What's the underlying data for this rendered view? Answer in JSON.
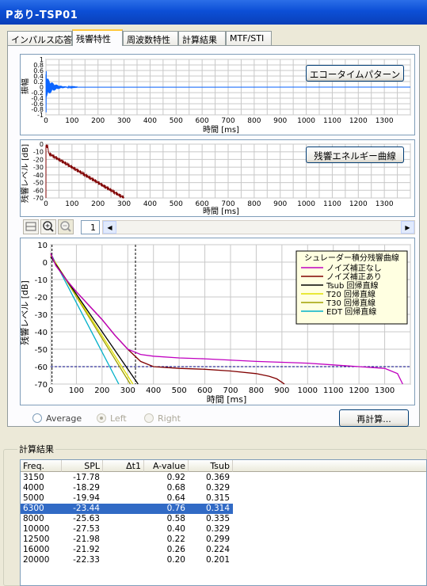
{
  "window": {
    "title": "Pあり-TSP01"
  },
  "tabs": [
    {
      "label": "インパルス応答"
    },
    {
      "label": "残響特性"
    },
    {
      "label": "周波数特性"
    },
    {
      "label": "計算結果"
    },
    {
      "label": "MTF/STI"
    }
  ],
  "echo_plot": {
    "button": "エコータイムパターン",
    "xlabel": "時間 [ms]",
    "ylabel": "振幅",
    "xticks": [
      "0",
      "100",
      "200",
      "300",
      "400",
      "500",
      "600",
      "700",
      "800",
      "900",
      "1000",
      "1100",
      "1200",
      "1300"
    ],
    "yticks": [
      "1",
      "0.8",
      "0.6",
      "0.4",
      "0.2",
      "0",
      "-0.2",
      "-0.4",
      "-0.6",
      "-0.8",
      "-1"
    ]
  },
  "energy_plot": {
    "button": "残響エネルギー曲線",
    "xlabel": "時間 [ms]",
    "ylabel": "残響レベル [dB]",
    "xticks": [
      "0",
      "100",
      "200",
      "300",
      "400",
      "500",
      "600",
      "700",
      "800",
      "900",
      "1000",
      "1100",
      "1200",
      "1300"
    ],
    "yticks": [
      "0",
      "-10",
      "-20",
      "-30",
      "-40",
      "-50",
      "-60",
      "-70"
    ]
  },
  "toolbar": {
    "page_value": "1"
  },
  "chart_data": {
    "type": "line",
    "xlabel": "時間 [ms]",
    "ylabel": "残響レベル [dB]",
    "xlim": [
      0,
      1400
    ],
    "ylim": [
      -70,
      10
    ],
    "xticks": [
      "0",
      "100",
      "200",
      "300",
      "400",
      "500",
      "600",
      "700",
      "800",
      "900",
      "1000",
      "1100",
      "1200",
      "1300"
    ],
    "yticks": [
      "10",
      "0",
      "-10",
      "-20",
      "-30",
      "-40",
      "-50",
      "-60",
      "-70"
    ],
    "legend_title": "シュレーダー積分残響曲線",
    "legend_position": "top-right",
    "grid": true,
    "series": [
      {
        "name": "ノイズ補正なし",
        "color": "#c000c0",
        "x": [
          0,
          20,
          60,
          100,
          150,
          200,
          250,
          300,
          350,
          400,
          500,
          600,
          800,
          1000,
          1100,
          1200,
          1300,
          1350,
          1370
        ],
        "y": [
          5,
          -2,
          -10,
          -17,
          -25,
          -33,
          -42,
          -50,
          -53,
          -54,
          -55,
          -55.5,
          -57,
          -58,
          -59,
          -60,
          -61,
          -64,
          -70
        ]
      },
      {
        "name": "ノイズ補正あり",
        "color": "#800000",
        "x": [
          0,
          20,
          60,
          100,
          150,
          200,
          250,
          300,
          350,
          400,
          500,
          600,
          700,
          800,
          850,
          880,
          900,
          910
        ],
        "y": [
          5,
          -2,
          -10,
          -17,
          -25,
          -33,
          -42,
          -50,
          -57,
          -60,
          -61,
          -61.5,
          -62.5,
          -64,
          -65.5,
          -67,
          -69,
          -70
        ]
      },
      {
        "name": "Tsub 回帰直線",
        "color": "#000000",
        "x": [
          0,
          340
        ],
        "y": [
          3,
          -70
        ]
      },
      {
        "name": "T20 回帰直線",
        "color": "#e0e000",
        "x": [
          0,
          320
        ],
        "y": [
          4,
          -70
        ]
      },
      {
        "name": "T30 回帰直線",
        "color": "#a0a000",
        "x": [
          0,
          310
        ],
        "y": [
          4,
          -70
        ]
      },
      {
        "name": "EDT 回帰直線",
        "color": "#00b0c8",
        "x": [
          0,
          265
        ],
        "y": [
          5,
          -70
        ]
      }
    ],
    "reference_lines": {
      "h_level": -60,
      "v_time": 330
    }
  },
  "radios": [
    {
      "label": "Average"
    },
    {
      "label": "Left"
    },
    {
      "label": "Right"
    }
  ],
  "recalc_button": "再計算...",
  "results": {
    "group_label": "計算結果",
    "columns": [
      "Freq.",
      "SPL",
      "Δt1",
      "A-value",
      "Tsub"
    ],
    "rows": [
      [
        "3150",
        "-17.78",
        "",
        "0.92",
        "0.369"
      ],
      [
        "4000",
        "-18.29",
        "",
        "0.68",
        "0.329"
      ],
      [
        "5000",
        "-19.94",
        "",
        "0.64",
        "0.315"
      ],
      [
        "6300",
        "-23.44",
        "",
        "0.76",
        "0.314"
      ],
      [
        "8000",
        "-25.63",
        "",
        "0.58",
        "0.335"
      ],
      [
        "10000",
        "-27.53",
        "",
        "0.40",
        "0.329"
      ],
      [
        "12500",
        "-21.98",
        "",
        "0.22",
        "0.299"
      ],
      [
        "16000",
        "-21.92",
        "",
        "0.26",
        "0.224"
      ],
      [
        "20000",
        "-22.33",
        "",
        "0.20",
        "0.201"
      ]
    ],
    "selected_row": 3
  }
}
